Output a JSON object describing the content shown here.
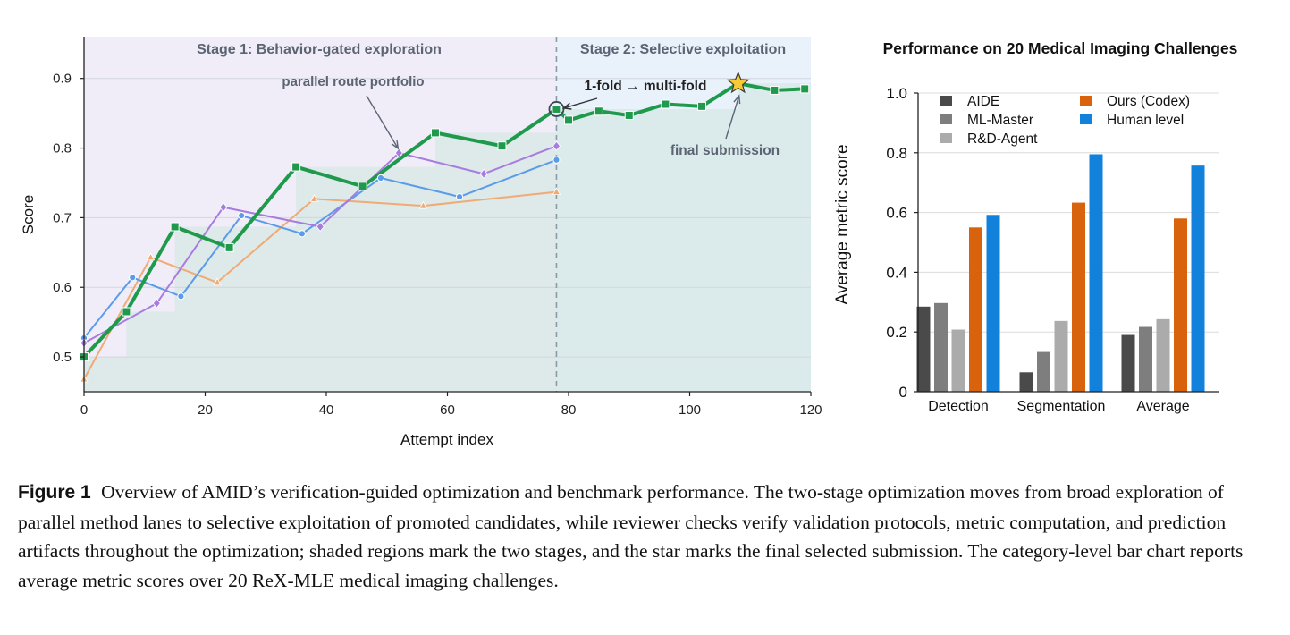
{
  "chart_data": [
    {
      "type": "line",
      "xlabel": "Attempt index",
      "ylabel": "Score",
      "xlim": [
        0,
        120
      ],
      "ylim": [
        0.45,
        0.96
      ],
      "xticks": [
        "0",
        "20",
        "40",
        "60",
        "80",
        "100",
        "120"
      ],
      "yticks": [
        "0.5",
        "0.6",
        "0.7",
        "0.8",
        "0.9"
      ],
      "stage_boundary_x": 78,
      "stages": [
        {
          "label": "Stage 1: Behavior-gated exploration",
          "x_range": [
            0,
            78
          ],
          "color": "#f0edf8"
        },
        {
          "label": "Stage 2: Selective exploitation",
          "x_range": [
            78,
            120
          ],
          "color": "#e9f1fb"
        }
      ],
      "annotations": [
        {
          "text": "parallel route portfolio",
          "x": 44,
          "y": 0.897,
          "arrow_to": [
            52,
            0.793
          ]
        },
        {
          "text": "1-fold → multi-fold",
          "x": 88,
          "y": 0.887,
          "arrow_to": [
            78,
            0.856
          ]
        },
        {
          "text": "final submission",
          "x": 95,
          "y": 0.802,
          "arrow_to": [
            108,
            0.893
          ]
        }
      ],
      "best_so_far_steps": [
        [
          0,
          0.5
        ],
        [
          7,
          0.565
        ],
        [
          15,
          0.687
        ],
        [
          35,
          0.773
        ],
        [
          58,
          0.822
        ],
        [
          78,
          0.856
        ],
        [
          108,
          0.893
        ],
        [
          120,
          0.893
        ]
      ],
      "series": [
        {
          "color": "#f0aa74",
          "marker": "triangle",
          "x": [
            0,
            11,
            22,
            38,
            56,
            78
          ],
          "y": [
            0.468,
            0.643,
            0.607,
            0.727,
            0.717,
            0.737
          ]
        },
        {
          "color": "#5a9bea",
          "marker": "circle",
          "x": [
            0,
            8,
            16,
            26,
            36,
            49,
            62,
            78
          ],
          "y": [
            0.527,
            0.614,
            0.587,
            0.703,
            0.677,
            0.757,
            0.73,
            0.783
          ]
        },
        {
          "color": "#a77ce0",
          "marker": "diamond",
          "x": [
            0,
            12,
            23,
            39,
            52,
            66,
            78
          ],
          "y": [
            0.52,
            0.577,
            0.715,
            0.687,
            0.793,
            0.763,
            0.803
          ]
        },
        {
          "color": "#1f9a4c",
          "marker": "square",
          "bold": true,
          "x": [
            0,
            7,
            15,
            24,
            35,
            46,
            58,
            69,
            78,
            80,
            85,
            90,
            96,
            102,
            108,
            114,
            119
          ],
          "y": [
            0.5,
            0.565,
            0.687,
            0.657,
            0.773,
            0.745,
            0.822,
            0.803,
            0.856,
            0.84,
            0.853,
            0.847,
            0.863,
            0.86,
            0.893,
            0.883,
            0.885
          ]
        }
      ],
      "final_submission": {
        "x": 108,
        "y": 0.893,
        "marker": "star",
        "color": "#f7c934"
      }
    },
    {
      "type": "bar",
      "title": "Performance on 20 Medical Imaging Challenges",
      "ylabel": "Average metric score",
      "categories": [
        "Detection",
        "Segmentation",
        "Average"
      ],
      "ylim": [
        0,
        1.0
      ],
      "yticks": [
        "0",
        "0.2",
        "0.4",
        "0.6",
        "0.8",
        "1.0"
      ],
      "legend": {
        "placement": "top-left",
        "columns": 2
      },
      "series": [
        {
          "name": "AIDE",
          "color": "#4a4a4a",
          "values": [
            0.285,
            0.065,
            0.19
          ]
        },
        {
          "name": "ML-Master",
          "color": "#7e7e7e",
          "values": [
            0.297,
            0.133,
            0.217
          ]
        },
        {
          "name": "R&D-Agent",
          "color": "#ababab",
          "values": [
            0.208,
            0.237,
            0.243
          ]
        },
        {
          "name": "Ours (Codex)",
          "color": "#d9620c",
          "values": [
            0.55,
            0.633,
            0.58
          ]
        },
        {
          "name": "Human level",
          "color": "#1281dc",
          "values": [
            0.592,
            0.795,
            0.757
          ]
        }
      ]
    }
  ],
  "caption": {
    "label": "Figure 1",
    "text": "Overview of AMID’s verification-guided optimization and benchmark performance. The two-stage optimization moves from broad exploration of parallel method lanes to selective exploitation of promoted candidates, while reviewer checks verify validation protocols, metric computation, and prediction artifacts throughout the optimization; shaded regions mark the two stages, and the star marks the final selected submission. The category-level bar chart reports average metric scores over 20 ReX-MLE medical imaging challenges."
  }
}
